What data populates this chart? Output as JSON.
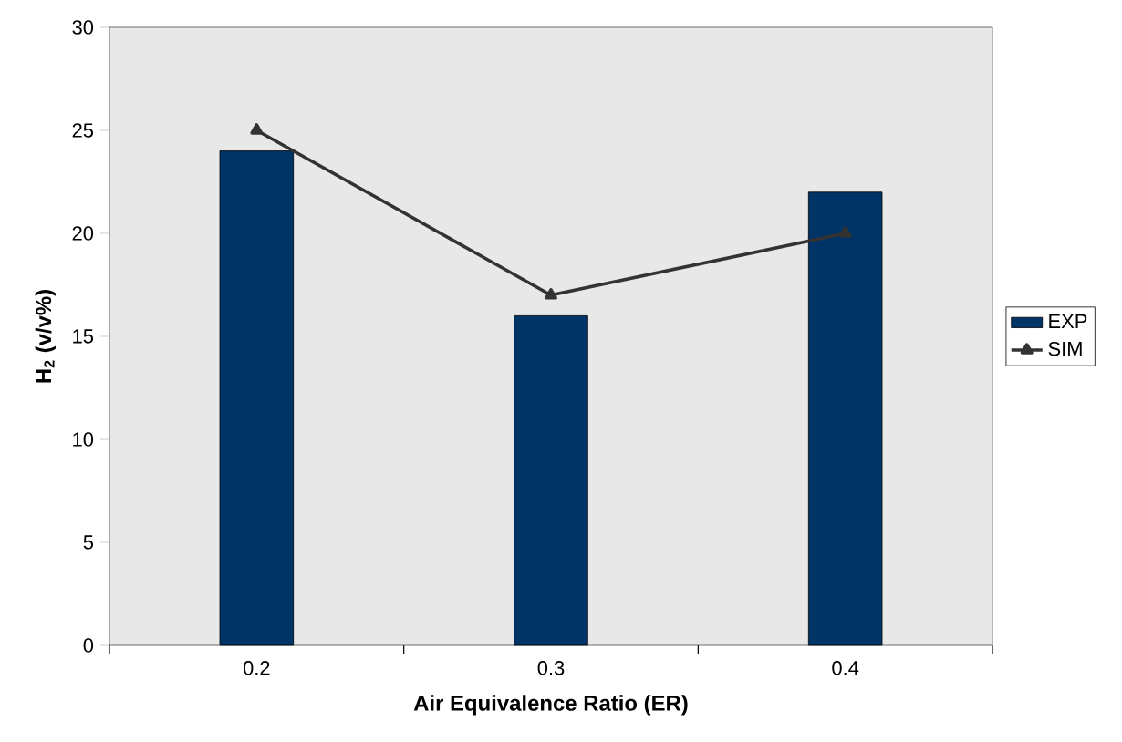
{
  "chart_data": {
    "type": "bar",
    "xlabel": "Air Equivalence Ratio (ER)",
    "ylabel": "H$_{2}$ (v/v%)",
    "categories": [
      "0.2",
      "0.3",
      "0.4"
    ],
    "series": [
      {
        "name": "EXP",
        "color": "#003366",
        "values": [
          24,
          16,
          22
        ]
      },
      {
        "name": "SIM",
        "type": "line",
        "color": "#333333",
        "values": [
          25,
          17,
          20
        ]
      }
    ],
    "ylim": [
      0,
      30
    ],
    "yticks": [
      0,
      5,
      10,
      15,
      20,
      25,
      30
    ],
    "legend": "right",
    "marker": "triangle",
    "line_style": "solid"
  }
}
